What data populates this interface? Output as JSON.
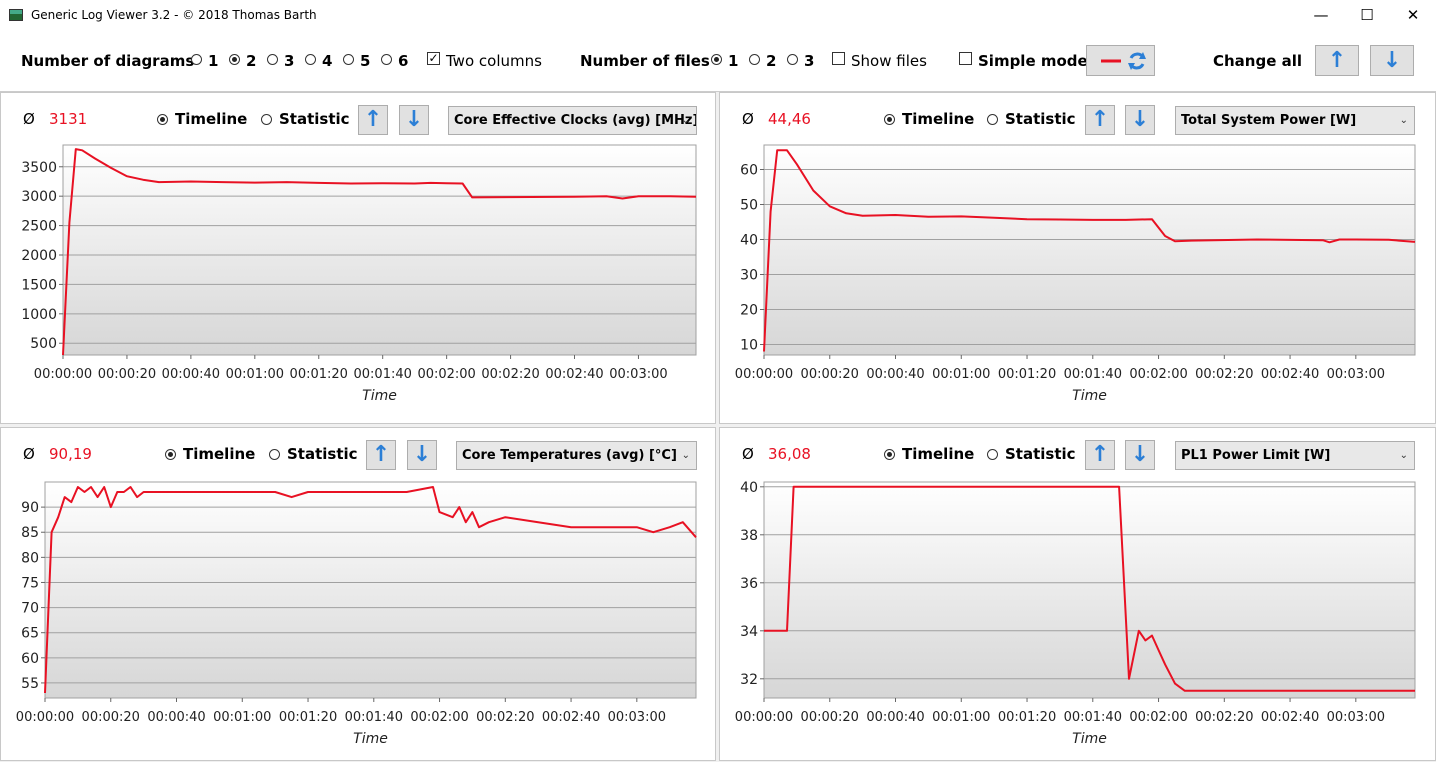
{
  "window": {
    "title": "Generic Log Viewer 3.2 - © 2018 Thomas Barth",
    "minimize": "—",
    "maximize": "☐",
    "close": "✕"
  },
  "toolbar": {
    "diagrams_label": "Number of diagrams",
    "diagram_options": [
      "1",
      "2",
      "3",
      "4",
      "5",
      "6"
    ],
    "diagram_selected": "2",
    "two_columns_label": "Two columns",
    "two_columns_checked": true,
    "files_label": "Number of files",
    "file_options": [
      "1",
      "2",
      "3"
    ],
    "file_selected": "1",
    "show_files_label": "Show files",
    "show_files_checked": false,
    "simple_mode_label": "Simple mode",
    "simple_mode_checked": false,
    "change_all_label": "Change all"
  },
  "panels": [
    {
      "avg_symbol": "Ø",
      "avg_value": "3131",
      "timeline_label": "Timeline",
      "statistic_label": "Statistic",
      "selected_view": "Timeline",
      "sensor": "Core Effective Clocks (avg) [MHz]",
      "x_label": "Time"
    },
    {
      "avg_symbol": "Ø",
      "avg_value": "44,46",
      "timeline_label": "Timeline",
      "statistic_label": "Statistic",
      "selected_view": "Timeline",
      "sensor": "Total System Power [W]",
      "x_label": "Time"
    },
    {
      "avg_symbol": "Ø",
      "avg_value": "90,19",
      "timeline_label": "Timeline",
      "statistic_label": "Statistic",
      "selected_view": "Timeline",
      "sensor": "Core Temperatures (avg) [°C]",
      "x_label": "Time"
    },
    {
      "avg_symbol": "Ø",
      "avg_value": "36,08",
      "timeline_label": "Timeline",
      "statistic_label": "Statistic",
      "selected_view": "Timeline",
      "sensor": "PL1 Power Limit [W]",
      "x_label": "Time"
    }
  ],
  "colors": {
    "line": "#e81123",
    "avg_value": "#e81123",
    "arrow_icon": "#2c7fd6",
    "grid": "#a0a0a0"
  },
  "chart_data": [
    {
      "type": "line",
      "xlabel": "Time",
      "ylabel": "",
      "x_ticks": [
        "00:00:00",
        "00:00:20",
        "00:00:40",
        "00:01:00",
        "00:01:20",
        "00:01:40",
        "00:02:00",
        "00:02:20",
        "00:02:40",
        "00:03:00"
      ],
      "y_ticks": [
        500,
        1000,
        1500,
        2000,
        2500,
        3000,
        3500
      ],
      "xlim": [
        0,
        198
      ],
      "ylim": [
        300,
        3870
      ],
      "series": [
        {
          "color": "#e81123",
          "x": [
            0,
            2,
            4,
            6,
            10,
            15,
            20,
            25,
            30,
            40,
            50,
            60,
            70,
            80,
            90,
            100,
            110,
            115,
            120,
            125,
            128,
            140,
            160,
            170,
            175,
            180,
            190,
            198
          ],
          "y": [
            300,
            2550,
            3800,
            3780,
            3640,
            3480,
            3340,
            3280,
            3240,
            3250,
            3240,
            3230,
            3240,
            3225,
            3215,
            3220,
            3215,
            3225,
            3220,
            3215,
            2980,
            2985,
            2990,
            3000,
            2960,
            3000,
            3000,
            2990
          ]
        }
      ]
    },
    {
      "type": "line",
      "xlabel": "Time",
      "ylabel": "",
      "x_ticks": [
        "00:00:00",
        "00:00:20",
        "00:00:40",
        "00:01:00",
        "00:01:20",
        "00:01:40",
        "00:02:00",
        "00:02:20",
        "00:02:40",
        "00:03:00"
      ],
      "y_ticks": [
        10,
        20,
        30,
        40,
        50,
        60
      ],
      "xlim": [
        0,
        198
      ],
      "ylim": [
        7,
        67
      ],
      "series": [
        {
          "color": "#e81123",
          "x": [
            0,
            2,
            4,
            5,
            7,
            10,
            15,
            20,
            25,
            30,
            40,
            50,
            60,
            70,
            80,
            90,
            100,
            110,
            118,
            122,
            125,
            130,
            150,
            170,
            172,
            175,
            180,
            190,
            198
          ],
          "y": [
            8,
            48,
            65.5,
            65.5,
            65.5,
            61.5,
            54,
            49.5,
            47.5,
            46.8,
            47,
            46.5,
            46.6,
            46.2,
            45.8,
            45.7,
            45.6,
            45.6,
            45.8,
            41,
            39.5,
            39.7,
            40,
            39.8,
            39.2,
            40,
            40,
            39.9,
            39.3
          ]
        }
      ]
    },
    {
      "type": "line",
      "xlabel": "Time",
      "ylabel": "",
      "x_ticks": [
        "00:00:00",
        "00:00:20",
        "00:00:40",
        "00:01:00",
        "00:01:20",
        "00:01:40",
        "00:02:00",
        "00:02:20",
        "00:02:40",
        "00:03:00"
      ],
      "y_ticks": [
        55,
        60,
        65,
        70,
        75,
        80,
        85,
        90
      ],
      "xlim": [
        0,
        198
      ],
      "ylim": [
        52,
        95
      ],
      "series": [
        {
          "color": "#e81123",
          "x": [
            0,
            2,
            4,
            6,
            8,
            10,
            12,
            14,
            16,
            18,
            20,
            22,
            24,
            26,
            28,
            30,
            35,
            40,
            50,
            60,
            70,
            75,
            80,
            90,
            100,
            110,
            118,
            120,
            124,
            126,
            128,
            130,
            132,
            135,
            140,
            150,
            160,
            170,
            180,
            185,
            190,
            194,
            198
          ],
          "y": [
            53,
            85,
            88,
            92,
            91,
            94,
            93,
            94,
            92,
            94,
            90,
            93,
            93,
            94,
            92,
            93,
            93,
            93,
            93,
            93,
            93,
            92,
            93,
            93,
            93,
            93,
            94,
            89,
            88,
            90,
            87,
            89,
            86,
            87,
            88,
            87,
            86,
            86,
            86,
            85,
            86,
            87,
            84
          ]
        }
      ]
    },
    {
      "type": "line",
      "xlabel": "Time",
      "ylabel": "",
      "x_ticks": [
        "00:00:00",
        "00:00:20",
        "00:00:40",
        "00:01:00",
        "00:01:20",
        "00:01:40",
        "00:02:00",
        "00:02:20",
        "00:02:40",
        "00:03:00"
      ],
      "y_ticks": [
        32,
        34,
        36,
        38,
        40
      ],
      "xlim": [
        0,
        198
      ],
      "ylim": [
        31.2,
        40.2
      ],
      "series": [
        {
          "color": "#e81123",
          "x": [
            0,
            7,
            9,
            108,
            111,
            114,
            116,
            118,
            120,
            122,
            125,
            128,
            131,
            135,
            140,
            150,
            198
          ],
          "y": [
            34,
            34,
            40,
            40,
            32,
            34,
            33.6,
            33.8,
            33.2,
            32.6,
            31.8,
            31.5,
            31.5,
            31.5,
            31.5,
            31.5,
            31.5
          ]
        }
      ]
    }
  ]
}
